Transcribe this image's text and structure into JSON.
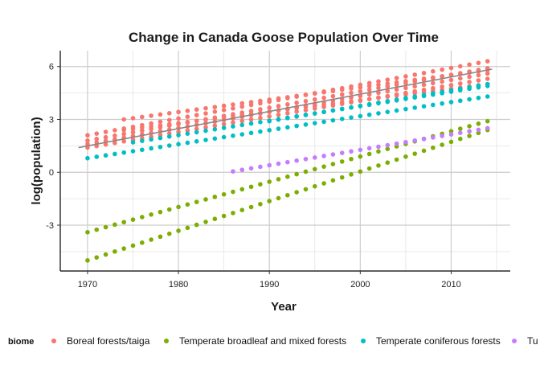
{
  "chart_data": {
    "type": "scatter",
    "title": "Change in Canada Goose Population Over Time",
    "xlabel": "Year",
    "ylabel": "log(population)",
    "xlim": [
      1967,
      2016.5
    ],
    "ylim": [
      -5.6,
      6.9
    ],
    "x_ticks": [
      1970,
      1980,
      1990,
      2000,
      2010
    ],
    "y_ticks": [
      -3,
      0,
      3,
      6
    ],
    "y_tick_labels": [
      "-3",
      "0",
      "3",
      "6"
    ],
    "grid": true,
    "legend_position": "bottom",
    "legend_title": "biome",
    "trend_line": {
      "x": [
        1969,
        2014.5
      ],
      "y": [
        1.4,
        5.85
      ],
      "color": "#888888"
    },
    "series": [
      {
        "name": "Boreal forests/taiga",
        "color": "#F8766D",
        "lines": [
          {
            "start": [
              1970,
              2.1
            ],
            "end": [
              2014,
              6.3
            ],
            "step": 1
          },
          {
            "start": [
              1970,
              1.8
            ],
            "end": [
              2014,
              5.9
            ],
            "step": 1
          },
          {
            "start": [
              1970,
              1.6
            ],
            "end": [
              2014,
              5.6
            ],
            "step": 1
          },
          {
            "start": [
              1970,
              1.4
            ],
            "end": [
              2014,
              5.3
            ],
            "step": 1
          },
          {
            "start": [
              1974,
              3.0
            ],
            "end": [
              2014,
              5.8
            ],
            "step": 1
          },
          {
            "start": [
              1974,
              2.4
            ],
            "end": [
              2014,
              5.0
            ],
            "step": 1
          }
        ]
      },
      {
        "name": "Temperate broadleaf and mixed forests",
        "color": "#7CAE00",
        "lines": [
          {
            "start": [
              1970,
              -3.4
            ],
            "end": [
              2014,
              2.9
            ],
            "step": 1
          },
          {
            "start": [
              1970,
              -5.0
            ],
            "end": [
              2014,
              2.4
            ],
            "step": 1
          }
        ]
      },
      {
        "name": "Temperate coniferous forests",
        "color": "#00BFC4",
        "lines": [
          {
            "start": [
              1970,
              0.8
            ],
            "end": [
              2014,
              4.3
            ],
            "step": 1
          },
          {
            "start": [
              1975,
              1.7
            ],
            "end": [
              2014,
              4.9
            ],
            "step": 1
          },
          {
            "start": [
              1990,
              2.9
            ],
            "end": [
              2014,
              5.0
            ],
            "step": 1
          }
        ]
      },
      {
        "name": "Tu",
        "color": "#C77CFF",
        "lines": [
          {
            "start": [
              1986,
              0.05
            ],
            "end": [
              2014,
              2.5
            ],
            "step": 1
          }
        ]
      }
    ]
  }
}
